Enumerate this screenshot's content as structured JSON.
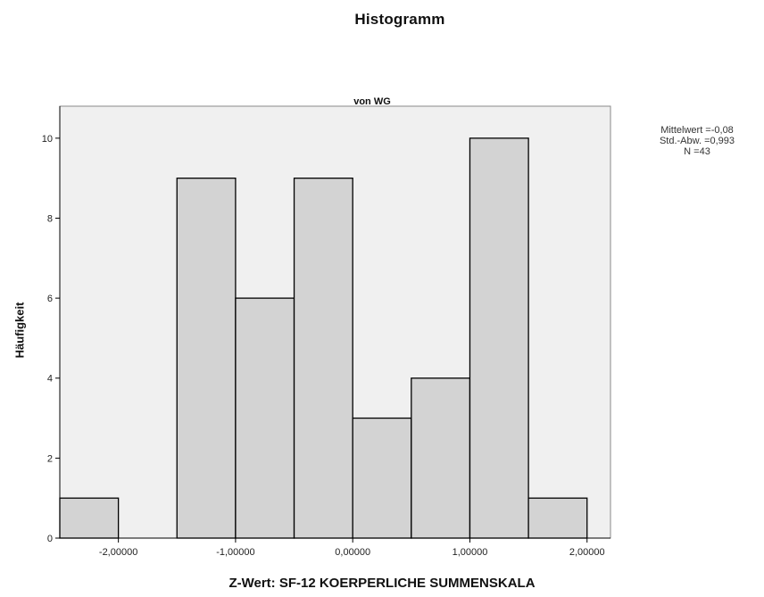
{
  "chart_data": {
    "type": "bar",
    "title": "Histogramm",
    "subtitle": "von WG",
    "xlabel": "Z-Wert:  SF-12 KOERPERLICHE SUMMENSKALA",
    "ylabel": "Häufigkeit",
    "bins": [
      {
        "from": -2.5,
        "to": -2.0,
        "value": 1
      },
      {
        "from": -2.0,
        "to": -1.5,
        "value": 0
      },
      {
        "from": -1.5,
        "to": -1.0,
        "value": 9
      },
      {
        "from": -1.0,
        "to": -0.5,
        "value": 6
      },
      {
        "from": -0.5,
        "to": 0.0,
        "value": 9
      },
      {
        "from": 0.0,
        "to": 0.5,
        "value": 3
      },
      {
        "from": 0.5,
        "to": 1.0,
        "value": 4
      },
      {
        "from": 1.0,
        "to": 1.5,
        "value": 10
      },
      {
        "from": 1.5,
        "to": 2.0,
        "value": 1
      }
    ],
    "xlim": [
      -2.5,
      2.2
    ],
    "ylim": [
      0,
      10.8
    ],
    "x_ticks": [
      {
        "value": -2.0,
        "label": "-2,00000"
      },
      {
        "value": -1.0,
        "label": "-1,00000"
      },
      {
        "value": 0.0,
        "label": "0,00000"
      },
      {
        "value": 1.0,
        "label": "1,00000"
      },
      {
        "value": 2.0,
        "label": "2,00000"
      }
    ],
    "y_ticks": [
      {
        "value": 0,
        "label": "0"
      },
      {
        "value": 2,
        "label": "2"
      },
      {
        "value": 4,
        "label": "4"
      },
      {
        "value": 6,
        "label": "6"
      },
      {
        "value": 8,
        "label": "8"
      },
      {
        "value": 10,
        "label": "10"
      }
    ],
    "stats": {
      "mean": "Mittelwert =-0,08",
      "sd": "Std.-Abw. =0,993",
      "n": "N =43"
    },
    "grid": false,
    "colors": {
      "plot_background": "#f0f0f0",
      "bar_fill": "#d3d3d3",
      "bar_stroke": "#000000"
    }
  }
}
